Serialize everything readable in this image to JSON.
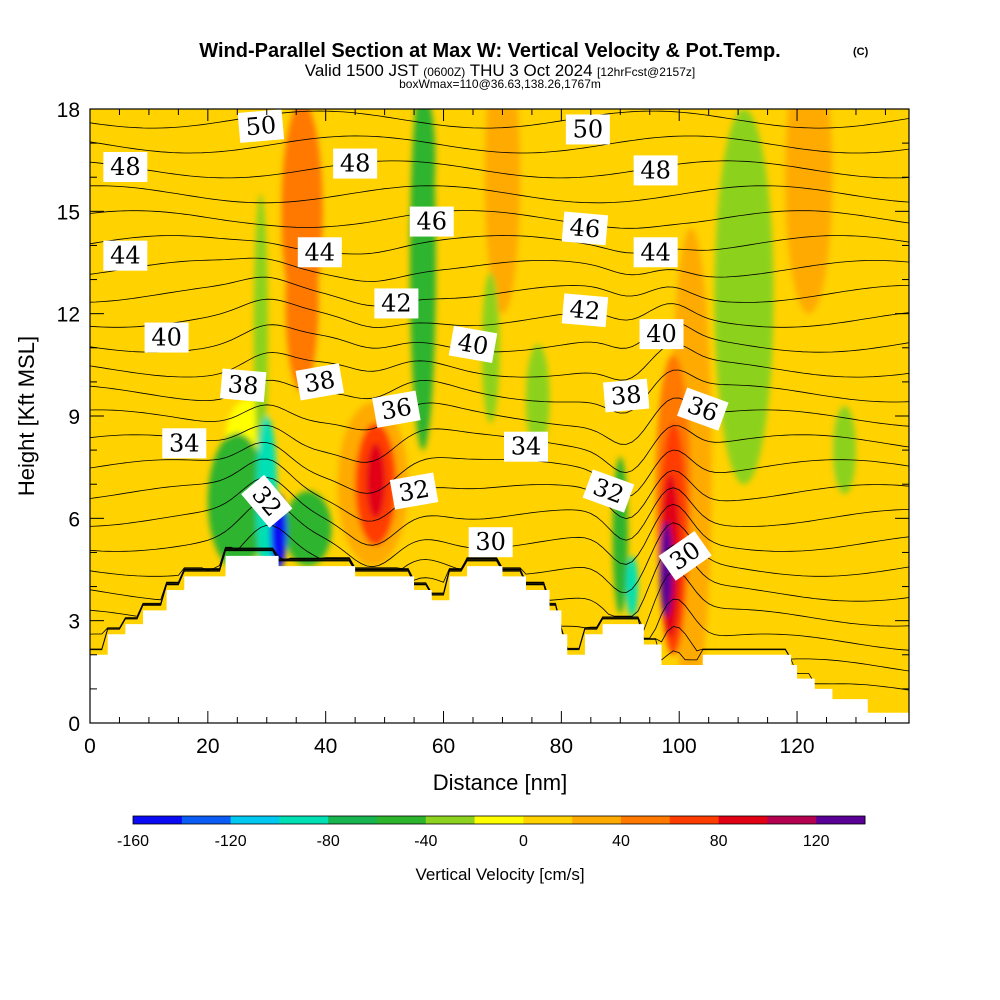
{
  "chart_data": {
    "type": "heatmap",
    "title": "Wind-Parallel Section at Max W: Vertical Velocity & Pot.Temp.",
    "title_mark": "(C)",
    "subtitle": {
      "valid_prefix": "Valid 1500 JST",
      "utc_time": "(0600Z)",
      "date": "THU 3 Oct 2024",
      "forecast": "[12hrFcst@2157z]"
    },
    "box_info": "boxWmax=110@36.63,138.26,1767m",
    "xlabel": "Distance [nm]",
    "ylabel": "Height [Kft MSL]",
    "xlim": [
      0,
      139
    ],
    "ylim": [
      0,
      18
    ],
    "x_ticks": [
      0,
      20,
      40,
      60,
      80,
      100,
      120
    ],
    "y_ticks": [
      0,
      3,
      6,
      9,
      12,
      15,
      18
    ],
    "colorbar": {
      "label": "Vertical Velocity [cm/s]",
      "range": [
        -160,
        140
      ],
      "step": 20,
      "tick_values": [
        -160,
        -120,
        -80,
        -40,
        0,
        40,
        80,
        120
      ],
      "tick_labels": [
        "-160",
        "-120",
        "-80",
        "-40",
        "0",
        "40",
        "80",
        "120"
      ],
      "colors": [
        "#0a0af5",
        "#0a5cf5",
        "#00c8f0",
        "#00e0b4",
        "#18b450",
        "#2db42d",
        "#8cd21e",
        "#ffff00",
        "#ffd200",
        "#ffaa00",
        "#ff7800",
        "#ff3c00",
        "#e10014",
        "#b40050",
        "#5a0096"
      ]
    },
    "terrain": [
      [
        0,
        2
      ],
      [
        3,
        2
      ],
      [
        3,
        2.6
      ],
      [
        6,
        2.6
      ],
      [
        6,
        2.9
      ],
      [
        9,
        2.9
      ],
      [
        9,
        3.3
      ],
      [
        13,
        3.3
      ],
      [
        13,
        3.9
      ],
      [
        16,
        3.9
      ],
      [
        16,
        4.3
      ],
      [
        23,
        4.3
      ],
      [
        23,
        4.9
      ],
      [
        32,
        4.9
      ],
      [
        32,
        4.6
      ],
      [
        45,
        4.6
      ],
      [
        45,
        4.3
      ],
      [
        55,
        4.3
      ],
      [
        55,
        3.9
      ],
      [
        58,
        3.9
      ],
      [
        58,
        3.6
      ],
      [
        61,
        3.6
      ],
      [
        61,
        4.3
      ],
      [
        64,
        4.3
      ],
      [
        64,
        4.6
      ],
      [
        70,
        4.6
      ],
      [
        70,
        4.3
      ],
      [
        74,
        4.3
      ],
      [
        74,
        3.9
      ],
      [
        78,
        3.9
      ],
      [
        78,
        3.3
      ],
      [
        80,
        3.3
      ],
      [
        80,
        2.6
      ],
      [
        81,
        2.6
      ],
      [
        81,
        2
      ],
      [
        84,
        2
      ],
      [
        84,
        2.6
      ],
      [
        87,
        2.6
      ],
      [
        87,
        2.9
      ],
      [
        94,
        2.9
      ],
      [
        94,
        2.3
      ],
      [
        97,
        2.3
      ],
      [
        97,
        1.7
      ],
      [
        104,
        1.7
      ],
      [
        104,
        2
      ],
      [
        119,
        2
      ],
      [
        119,
        1.7
      ],
      [
        120,
        1.7
      ],
      [
        120,
        1.3
      ],
      [
        123,
        1.3
      ],
      [
        123,
        1
      ],
      [
        126,
        1
      ],
      [
        126,
        0.7
      ],
      [
        132,
        0.7
      ],
      [
        132,
        0.3
      ],
      [
        139,
        0.3
      ]
    ],
    "w_features": [
      {
        "x": 5,
        "y": 13,
        "rx": 5,
        "ry": 8,
        "w": 15
      },
      {
        "x": 36,
        "y": 15,
        "rx": 3.5,
        "ry": 3.2,
        "w": 50
      },
      {
        "x": 36,
        "y": 12.3,
        "rx": 2.8,
        "ry": 2.6,
        "w": 40
      },
      {
        "x": 42,
        "y": 9.5,
        "rx": 5,
        "ry": 2.5,
        "w": 15
      },
      {
        "x": 48,
        "y": 7,
        "rx": 6,
        "ry": 2.4,
        "w": 35
      },
      {
        "x": 48.5,
        "y": 7,
        "rx": 3.5,
        "ry": 1.8,
        "w": 60
      },
      {
        "x": 48.5,
        "y": 7.1,
        "rx": 1.6,
        "ry": 1.1,
        "w": 80
      },
      {
        "x": 70,
        "y": 16,
        "rx": 3,
        "ry": 4,
        "w": 20
      },
      {
        "x": 82,
        "y": 13,
        "rx": 5,
        "ry": 3,
        "w": 18
      },
      {
        "x": 102,
        "y": 7.5,
        "rx": 3.5,
        "ry": 7,
        "w": 25
      },
      {
        "x": 99,
        "y": 6.8,
        "rx": 3,
        "ry": 4,
        "w": 50
      },
      {
        "x": 99,
        "y": 5.4,
        "rx": 2.4,
        "ry": 3.4,
        "w": 70
      },
      {
        "x": 98.5,
        "y": 4.9,
        "rx": 1.7,
        "ry": 2.4,
        "w": 90
      },
      {
        "x": 97.8,
        "y": 4.5,
        "rx": 1.1,
        "ry": 1.4,
        "w": 120
      },
      {
        "x": 122,
        "y": 16,
        "rx": 4,
        "ry": 4,
        "w": 35
      },
      {
        "x": 124,
        "y": 8,
        "rx": 4,
        "ry": 4,
        "w": 12
      },
      {
        "x": 110,
        "y": 13,
        "rx": 4,
        "ry": 4,
        "w": 18
      },
      {
        "x": 29,
        "y": 11.5,
        "rx": 1.2,
        "ry": 4,
        "w": -40
      },
      {
        "x": 25,
        "y": 6.5,
        "rx": 5,
        "ry": 2,
        "w": -45
      },
      {
        "x": 27,
        "y": 8.3,
        "rx": 4,
        "ry": 1.2,
        "w": -20
      },
      {
        "x": 30,
        "y": 6.5,
        "rx": 1.8,
        "ry": 2.5,
        "w": -100
      },
      {
        "x": 32,
        "y": 5.6,
        "rx": 1.4,
        "ry": 1.1,
        "w": -145
      },
      {
        "x": 37,
        "y": 5.7,
        "rx": 4,
        "ry": 1.1,
        "w": -50
      },
      {
        "x": 56.5,
        "y": 13.5,
        "rx": 2.2,
        "ry": 5.5,
        "w": -45
      },
      {
        "x": 57,
        "y": 16.5,
        "rx": 1.6,
        "ry": 1.8,
        "w": -50
      },
      {
        "x": 68,
        "y": 11,
        "rx": 1.5,
        "ry": 2.2,
        "w": -30
      },
      {
        "x": 76,
        "y": 9.5,
        "rx": 2,
        "ry": 1.6,
        "w": -30
      },
      {
        "x": 90,
        "y": 5.5,
        "rx": 1.3,
        "ry": 2.3,
        "w": -55
      },
      {
        "x": 92,
        "y": 4,
        "rx": 1,
        "ry": 0.9,
        "w": -85
      },
      {
        "x": 111,
        "y": 12.5,
        "rx": 5,
        "ry": 5.5,
        "w": -30
      },
      {
        "x": 128,
        "y": 8,
        "rx": 2,
        "ry": 1.3,
        "w": -30
      }
    ],
    "theta_contours": {
      "levels": [
        29,
        30,
        31,
        32,
        33,
        34,
        35,
        36,
        37,
        38,
        39,
        40,
        41,
        42,
        43,
        44,
        45,
        46,
        47,
        48,
        49,
        50,
        51,
        52
      ],
      "labels": [
        {
          "text": "48",
          "x": 6,
          "y": 16.3,
          "angle": 0
        },
        {
          "text": "50",
          "x": 29,
          "y": 17.5,
          "angle": -5
        },
        {
          "text": "48",
          "x": 45,
          "y": 16.4,
          "angle": 0
        },
        {
          "text": "50",
          "x": 84.5,
          "y": 17.4,
          "angle": 0
        },
        {
          "text": "48",
          "x": 96,
          "y": 16.2,
          "angle": 0
        },
        {
          "text": "46",
          "x": 58,
          "y": 14.7,
          "angle": 0
        },
        {
          "text": "46",
          "x": 84,
          "y": 14.5,
          "angle": 5
        },
        {
          "text": "44",
          "x": 6,
          "y": 13.7,
          "angle": 0
        },
        {
          "text": "44",
          "x": 39,
          "y": 13.8,
          "angle": 0
        },
        {
          "text": "44",
          "x": 96,
          "y": 13.8,
          "angle": 0
        },
        {
          "text": "42",
          "x": 52,
          "y": 12.3,
          "angle": 0
        },
        {
          "text": "42",
          "x": 84,
          "y": 12.1,
          "angle": 5
        },
        {
          "text": "40",
          "x": 13,
          "y": 11.3,
          "angle": 0
        },
        {
          "text": "40",
          "x": 65,
          "y": 11.1,
          "angle": 10
        },
        {
          "text": "40",
          "x": 97,
          "y": 11.4,
          "angle": 0
        },
        {
          "text": "38",
          "x": 26,
          "y": 9.9,
          "angle": 5
        },
        {
          "text": "38",
          "x": 39,
          "y": 10,
          "angle": -10
        },
        {
          "text": "38",
          "x": 91,
          "y": 9.6,
          "angle": -5
        },
        {
          "text": "36",
          "x": 52,
          "y": 9.2,
          "angle": -10
        },
        {
          "text": "36",
          "x": 104,
          "y": 9.2,
          "angle": 20
        },
        {
          "text": "34",
          "x": 16,
          "y": 8.2,
          "angle": 0
        },
        {
          "text": "34",
          "x": 74,
          "y": 8.1,
          "angle": 0
        },
        {
          "text": "32",
          "x": 30,
          "y": 6.5,
          "angle": 50
        },
        {
          "text": "32",
          "x": 55,
          "y": 6.8,
          "angle": -10
        },
        {
          "text": "32",
          "x": 88,
          "y": 6.8,
          "angle": 20
        },
        {
          "text": "30",
          "x": 68,
          "y": 5.3,
          "angle": 0
        },
        {
          "text": "30",
          "x": 101,
          "y": 4.9,
          "angle": -35
        }
      ]
    }
  }
}
